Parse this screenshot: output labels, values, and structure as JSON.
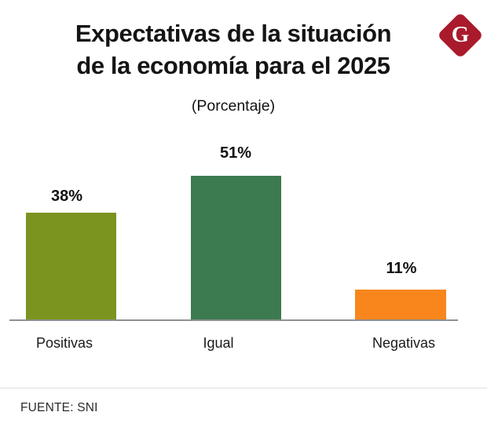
{
  "brand": {
    "logo_letter": "G",
    "logo_color": "#A91B2C"
  },
  "header": {
    "title_line1": "Expectativas de la situación",
    "title_line2": "de la economía para el 2025",
    "subtitle": "(Porcentaje)"
  },
  "chart_data": {
    "type": "bar",
    "title": "Expectativas de la situación de la economía para el 2025",
    "subtitle": "(Porcentaje)",
    "categories": [
      "Positivas",
      "Igual",
      "Negativas"
    ],
    "values": [
      38,
      51,
      11
    ],
    "value_labels": [
      "38%",
      "51%",
      "11%"
    ],
    "colors": [
      "#7A941F",
      "#3C7A50",
      "#F8861D"
    ],
    "xlabel": "",
    "ylabel": "",
    "ylim": [
      0,
      55
    ],
    "grid": false,
    "legend": false,
    "axis_line_color": "#8f8f8f"
  },
  "footer": {
    "source": "FUENTE: SNI"
  }
}
